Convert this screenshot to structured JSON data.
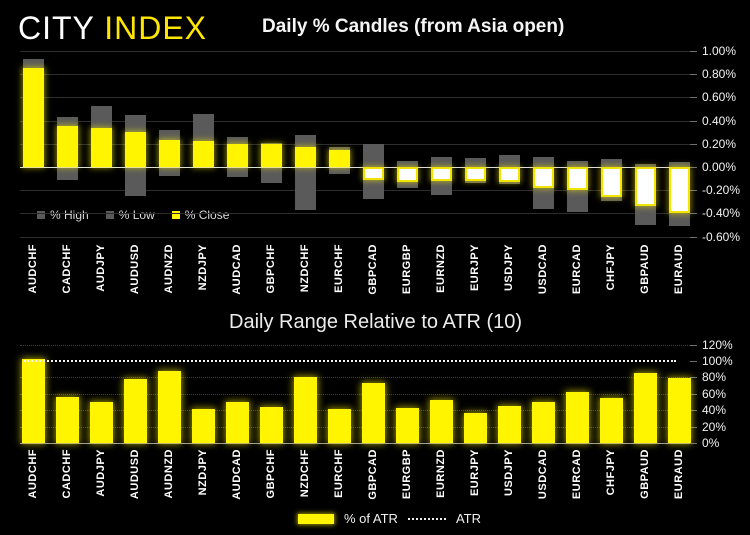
{
  "logo": {
    "part1": "CITY ",
    "part2": "INDEX"
  },
  "colors": {
    "background": "#000000",
    "logo_yellow": "#FFE600",
    "bar_yellow": "#FFF500",
    "high_low_gray": "#5A5A5A",
    "zero_line": "#DDDDDD",
    "atr_dotted_line": "#F5F5F5",
    "axis_text": "#F2F2F2"
  },
  "chart_data": [
    {
      "type": "bar",
      "subtype": "candle-high-low-close",
      "title": "Daily % Candles (from Asia open)",
      "categories": [
        "AUDCHF",
        "CADCHF",
        "AUDJPY",
        "AUDUSD",
        "AUDNZD",
        "NZDJPY",
        "AUDCAD",
        "GBPCHF",
        "NZDCHF",
        "EURCHF",
        "GBPCAD",
        "EURGBP",
        "EURNZD",
        "EURJPY",
        "USDJPY",
        "USDCAD",
        "EURCAD",
        "CHFJPY",
        "GBPAUD",
        "EURAUD"
      ],
      "series": [
        {
          "name": "% High",
          "values": [
            0.93,
            0.43,
            0.53,
            0.45,
            0.32,
            0.46,
            0.26,
            0.21,
            0.28,
            0.17,
            0.2,
            0.05,
            0.09,
            0.08,
            0.1,
            0.09,
            0.05,
            0.07,
            0.03,
            0.04
          ]
        },
        {
          "name": "% Low",
          "values": [
            0.0,
            -0.11,
            0.0,
            -0.25,
            -0.08,
            0.0,
            -0.09,
            -0.14,
            -0.37,
            -0.06,
            -0.28,
            -0.18,
            -0.24,
            -0.14,
            -0.15,
            -0.36,
            -0.39,
            -0.29,
            -0.5,
            -0.51
          ]
        },
        {
          "name": "% Close",
          "values": [
            0.85,
            0.35,
            0.34,
            0.3,
            0.23,
            0.22,
            0.2,
            0.2,
            0.17,
            0.15,
            -0.11,
            -0.13,
            -0.12,
            -0.12,
            -0.13,
            -0.18,
            -0.2,
            -0.26,
            -0.34,
            -0.4
          ]
        }
      ],
      "ylim": [
        -0.6,
        1.0
      ],
      "yticks": [
        "1.00%",
        "0.80%",
        "0.60%",
        "0.40%",
        "0.20%",
        "0.00%",
        "-0.20%",
        "-0.40%",
        "-0.60%"
      ],
      "legend": [
        "% High",
        "% Low",
        "% Close"
      ],
      "legend_position": "bottom-left",
      "grid": "solid horizontal"
    },
    {
      "type": "bar",
      "title": "Daily Range Relative to ATR (10)",
      "categories": [
        "AUDCHF",
        "CADCHF",
        "AUDJPY",
        "AUDUSD",
        "AUDNZD",
        "NZDJPY",
        "AUDCAD",
        "GBPCHF",
        "NZDCHF",
        "EURCHF",
        "GBPCAD",
        "EURGBP",
        "EURNZD",
        "EURJPY",
        "USDJPY",
        "USDCAD",
        "EURCAD",
        "CHFJPY",
        "GBPAUD",
        "EURAUD"
      ],
      "values": [
        103,
        56,
        50,
        78,
        88,
        42,
        50,
        44,
        80,
        42,
        73,
        43,
        52,
        36,
        45,
        50,
        62,
        55,
        85,
        79
      ],
      "reference_line": {
        "label": "ATR",
        "value": 100,
        "style": "dotted"
      },
      "ylim": [
        0,
        120
      ],
      "yticks": [
        "120%",
        "100%",
        "80%",
        "60%",
        "40%",
        "20%",
        "0%"
      ],
      "legend": [
        "% of ATR",
        "ATR"
      ],
      "legend_position": "bottom-center",
      "grid": "dotted horizontal"
    }
  ]
}
